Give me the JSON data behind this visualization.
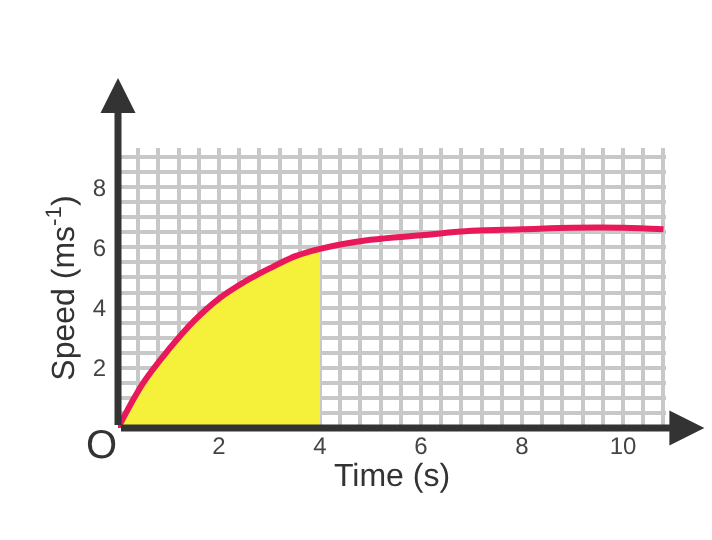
{
  "chart_data": {
    "type": "line",
    "xlabel": "Time (s)",
    "ylabel": "Speed (ms$^{-1}$)",
    "annotations": [
      "O"
    ],
    "xlim": [
      0,
      10.85
    ],
    "ylim": [
      0,
      9.3
    ],
    "xticks": [
      {
        "value": 0,
        "label": null
      },
      {
        "value": 0.4,
        "label": null
      },
      {
        "value": 0.8,
        "label": null
      },
      {
        "value": 1.2,
        "label": null
      },
      {
        "value": 1.6,
        "label": null
      },
      2,
      {
        "value": 2.4,
        "label": null
      },
      {
        "value": 2.8,
        "label": null
      },
      {
        "value": 3.2,
        "label": null
      },
      {
        "value": 3.6,
        "label": null
      },
      4,
      {
        "value": 4.4,
        "label": null
      },
      {
        "value": 4.8,
        "label": null
      },
      {
        "value": 5.2,
        "label": null
      },
      {
        "value": 5.6,
        "label": null
      },
      6,
      {
        "value": 6.4,
        "label": null
      },
      {
        "value": 6.8,
        "label": null
      },
      {
        "value": 7.2,
        "label": null
      },
      {
        "value": 7.6,
        "label": null
      },
      8,
      {
        "value": 8.4,
        "label": null
      },
      {
        "value": 8.8,
        "label": null
      },
      {
        "value": 9.2,
        "label": null
      },
      {
        "value": 9.6,
        "label": null
      },
      10,
      {
        "value": 10.4,
        "label": null
      },
      {
        "value": 10.8,
        "label": null
      }
    ],
    "yticks": [
      {
        "value": 0,
        "label": null
      },
      {
        "value": 0.5,
        "label": null
      },
      {
        "value": 1,
        "label": null
      },
      {
        "value": 1.5,
        "label": null
      },
      2,
      {
        "value": 2.5,
        "label": null
      },
      {
        "value": 3,
        "label": null
      },
      {
        "value": 3.5,
        "label": null
      },
      4,
      {
        "value": 4.5,
        "label": null
      },
      {
        "value": 5,
        "label": null
      },
      {
        "value": 5.5,
        "label": null
      },
      6,
      {
        "value": 6.5,
        "label": null
      },
      {
        "value": 7,
        "label": null
      },
      {
        "value": 7.5,
        "label": null
      },
      8,
      {
        "value": 8.5,
        "label": null
      },
      {
        "value": 9,
        "label": null
      }
    ],
    "grid": true,
    "series": [
      {
        "type": "area",
        "color": "#f5f03a",
        "x": [
          0,
          0.5,
          1,
          1.5,
          2,
          2.5,
          3,
          3.5,
          4
        ],
        "values": [
          0,
          1.5,
          2.6,
          3.55,
          4.3,
          4.85,
          5.3,
          5.7,
          5.95
        ]
      },
      {
        "color": "#e8185a",
        "x": [
          0,
          0.5,
          1,
          1.5,
          2,
          2.5,
          3,
          3.5,
          4,
          5,
          6,
          7,
          8,
          9,
          10,
          10.8
        ],
        "values": [
          0,
          1.5,
          2.6,
          3.55,
          4.3,
          4.85,
          5.3,
          5.7,
          5.95,
          6.25,
          6.4,
          6.55,
          6.6,
          6.65,
          6.65,
          6.6
        ]
      }
    ]
  }
}
